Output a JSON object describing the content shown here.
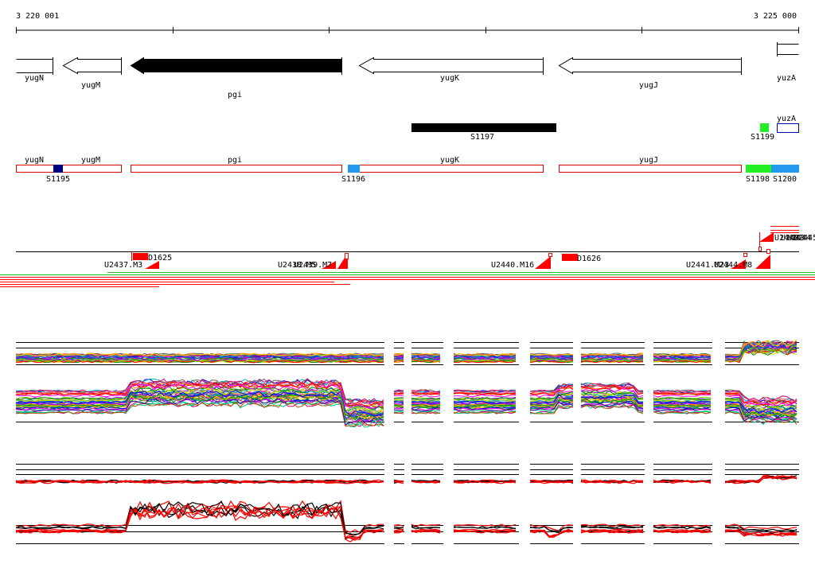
{
  "coords": {
    "start": "3 220 001",
    "end": "3 225 000"
  },
  "genes": [
    {
      "name": "yugN",
      "strand": "+",
      "filled": false
    },
    {
      "name": "yugM",
      "strand": "-",
      "filled": false
    },
    {
      "name": "pgi",
      "strand": "-",
      "filled": true
    },
    {
      "name": "yugK",
      "strand": "-",
      "filled": false
    },
    {
      "name": "yugJ",
      "strand": "-",
      "filled": false
    },
    {
      "name": "yuzA",
      "strand": "+",
      "filled": false
    }
  ],
  "segments": {
    "bar_label": "S1197",
    "mid": [
      {
        "name": "S1199",
        "color": "#22ee22"
      },
      {
        "name": "yuzA",
        "color": "#ffffff",
        "stroke": "#0000aa"
      }
    ],
    "gene_row": [
      {
        "name": "yugN"
      },
      {
        "name": "yugM"
      },
      {
        "name": "pgi"
      },
      {
        "name": "yugK"
      },
      {
        "name": "yugJ"
      }
    ],
    "markers": [
      {
        "name": "S1195",
        "color": "#000080"
      },
      {
        "name": "S1196",
        "color": "#2299ee"
      },
      {
        "name": "S1198",
        "color": "#22ee22"
      },
      {
        "name": "S1200",
        "color": "#2299ee"
      }
    ]
  },
  "probes": {
    "labels": [
      "U2437.M3",
      "D1625",
      "U2438.M5",
      "U2439.M7",
      "U2440.M16",
      "D1626",
      "U2441.M23",
      "U2444.M8",
      "U2442",
      "U2443",
      "U2444",
      "U2445.M10"
    ]
  },
  "colors": {
    "primary": "#000000",
    "accent": "#ff0000",
    "green": "#22bb22"
  }
}
